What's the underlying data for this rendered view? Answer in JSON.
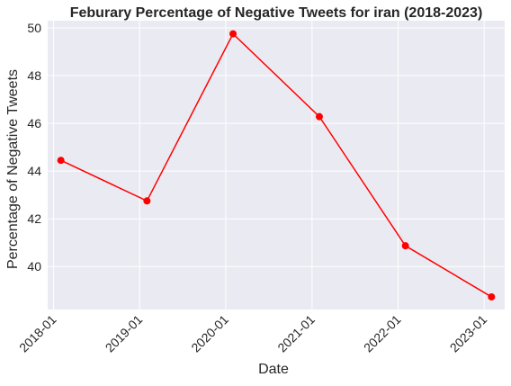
{
  "chart_data": {
    "type": "line",
    "title": "Feburary Percentage of Negative Tweets for iran (2018-2023)",
    "xlabel": "Date",
    "ylabel": "Percentage of Negative Tweets",
    "x": [
      "2018-02",
      "2019-02",
      "2020-02",
      "2021-02",
      "2022-02",
      "2023-02"
    ],
    "x_ticks": [
      "2018-01",
      "2019-01",
      "2020-01",
      "2021-01",
      "2022-01",
      "2023-01"
    ],
    "y_ticks": [
      40,
      42,
      44,
      46,
      48,
      50
    ],
    "series": [
      {
        "values": [
          44.45,
          42.75,
          49.75,
          46.28,
          40.87,
          38.73
        ]
      }
    ],
    "ylim": [
      38.2,
      50.3
    ],
    "xlim": [
      "2017-12-07",
      "2023-03-29"
    ],
    "grid": true,
    "colors": {
      "background": "#eaeaf2",
      "grid": "#ffffff",
      "line": "#ff0000",
      "text": "#262626"
    }
  }
}
